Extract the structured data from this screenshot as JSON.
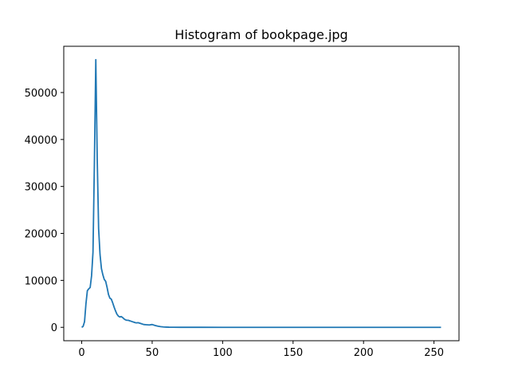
{
  "chart_data": {
    "type": "line",
    "title": "Histogram of bookpage.jpg",
    "xlabel": "",
    "ylabel": "",
    "xlim": [
      -12.75,
      267.75
    ],
    "ylim": [
      -2850,
      59850
    ],
    "xticks": [
      0,
      50,
      100,
      150,
      200,
      250
    ],
    "yticks": [
      0,
      10000,
      20000,
      30000,
      40000,
      50000
    ],
    "grid": false,
    "legend": "none",
    "line_color": "#1f77b4",
    "series": [
      {
        "x": [
          0,
          1,
          2,
          3,
          4,
          5,
          6,
          7,
          8,
          9,
          10,
          11,
          12,
          13,
          14,
          15,
          16,
          17,
          18,
          19,
          20,
          21,
          22,
          23,
          24,
          25,
          26,
          27,
          28,
          29,
          30,
          31,
          32,
          33,
          34,
          35,
          36,
          37,
          38,
          39,
          40,
          42,
          44,
          46,
          48,
          50,
          52,
          54,
          56,
          58,
          60,
          62,
          65,
          70,
          80,
          100,
          150,
          200,
          255
        ],
        "values": [
          0,
          200,
          1200,
          5000,
          7800,
          8200,
          8500,
          11000,
          16000,
          35000,
          57000,
          36000,
          21000,
          15500,
          12500,
          11200,
          10200,
          9800,
          8500,
          7000,
          6200,
          6000,
          5200,
          4300,
          3500,
          2800,
          2400,
          2200,
          2300,
          2100,
          1800,
          1600,
          1500,
          1500,
          1400,
          1300,
          1200,
          1100,
          1000,
          950,
          1000,
          800,
          600,
          550,
          500,
          600,
          400,
          250,
          150,
          80,
          50,
          30,
          20,
          10,
          5,
          2,
          0,
          0,
          0
        ]
      }
    ]
  }
}
